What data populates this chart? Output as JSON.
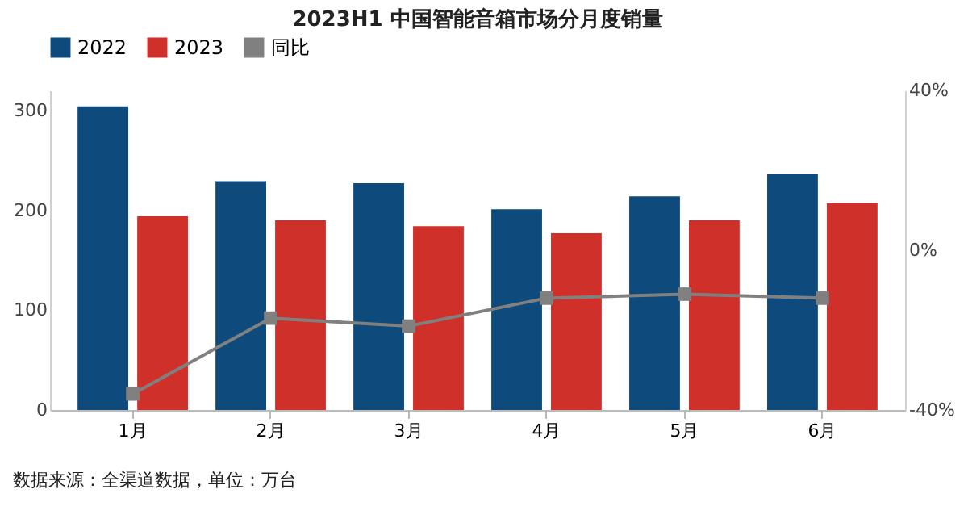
{
  "chart_data": {
    "type": "bar",
    "title": "2023H1 中国智能音箱市场分月度销量",
    "categories": [
      "1月",
      "2月",
      "3月",
      "4月",
      "5月",
      "6月"
    ],
    "series": [
      {
        "name": "2022",
        "color": "#0e4a7b",
        "values": [
          304,
          229,
          227,
          201,
          214,
          236
        ]
      },
      {
        "name": "2023",
        "color": "#d0302a",
        "values": [
          194,
          190,
          184,
          177,
          190,
          207
        ]
      },
      {
        "name": "同比",
        "type": "line",
        "axis": "y2",
        "color": "#808080",
        "values": [
          -36,
          -17,
          -19,
          -12,
          -11,
          -12
        ]
      }
    ],
    "ylim": [
      0,
      320
    ],
    "yticks": [
      0,
      100,
      200,
      300
    ],
    "y2lim": [
      -40,
      40
    ],
    "y2ticks": [
      {
        "value": -40,
        "label": "-40%"
      },
      {
        "value": 0,
        "label": "0%"
      },
      {
        "value": 40,
        "label": "40%"
      }
    ],
    "legend": "top",
    "grid": false,
    "marker": "square",
    "annotations": [
      "数据来源：全渠道数据，单位：万台"
    ]
  }
}
